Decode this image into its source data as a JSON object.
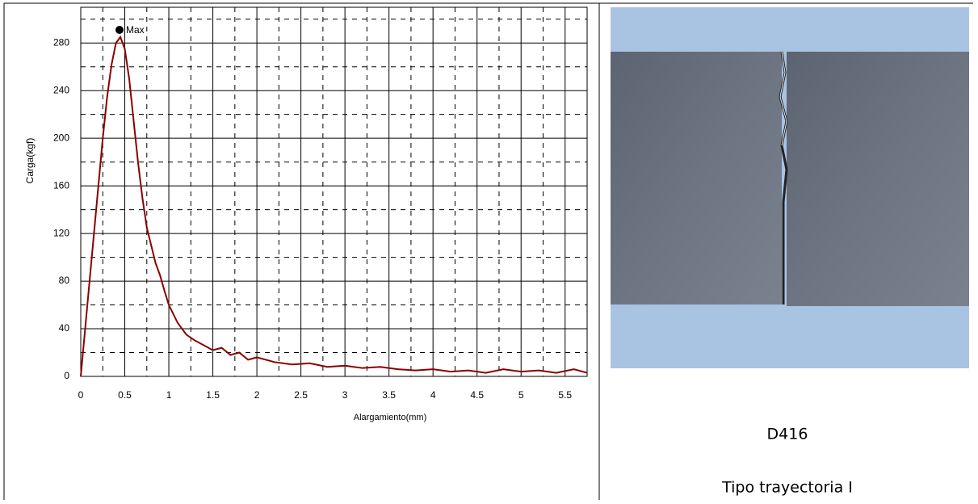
{
  "chart_data": {
    "type": "line",
    "xlabel": "Alargamiento(mm)",
    "ylabel": "Carga(kgf)",
    "x": [
      0,
      0.05,
      0.1,
      0.15,
      0.2,
      0.25,
      0.3,
      0.35,
      0.4,
      0.45,
      0.5,
      0.55,
      0.6,
      0.65,
      0.7,
      0.75,
      0.8,
      0.85,
      0.9,
      0.95,
      1.0,
      1.1,
      1.2,
      1.3,
      1.4,
      1.5,
      1.6,
      1.7,
      1.8,
      1.9,
      2.0,
      2.2,
      2.4,
      2.6,
      2.8,
      3.0,
      3.2,
      3.4,
      3.6,
      3.8,
      4.0,
      4.2,
      4.4,
      4.6,
      4.8,
      5.0,
      5.2,
      5.4,
      5.6,
      5.75
    ],
    "values": [
      0,
      40,
      80,
      120,
      160,
      200,
      235,
      262,
      280,
      285,
      275,
      250,
      215,
      180,
      150,
      125,
      110,
      95,
      85,
      72,
      60,
      45,
      35,
      30,
      26,
      22,
      24,
      18,
      20,
      14,
      16,
      12,
      10,
      11,
      8,
      9,
      7,
      8,
      6,
      5,
      6,
      4,
      5,
      3,
      6,
      4,
      5,
      3,
      6,
      3
    ],
    "color": "#8b0000",
    "xlim": [
      0,
      5.75
    ],
    "xticks": [
      0,
      0.5,
      1,
      1.5,
      2,
      2.5,
      3,
      3.5,
      4,
      4.5,
      5,
      5.5
    ],
    "ylim": [
      0,
      310
    ],
    "yticks": [
      0,
      40,
      80,
      120,
      160,
      200,
      240,
      280
    ],
    "grid": true,
    "minor_grid": true,
    "annotations": [
      {
        "text": "Max",
        "x": 0.44,
        "y": 291
      }
    ]
  },
  "photo_caption": {
    "code": "D416",
    "type": "Tipo trayectoria I"
  }
}
